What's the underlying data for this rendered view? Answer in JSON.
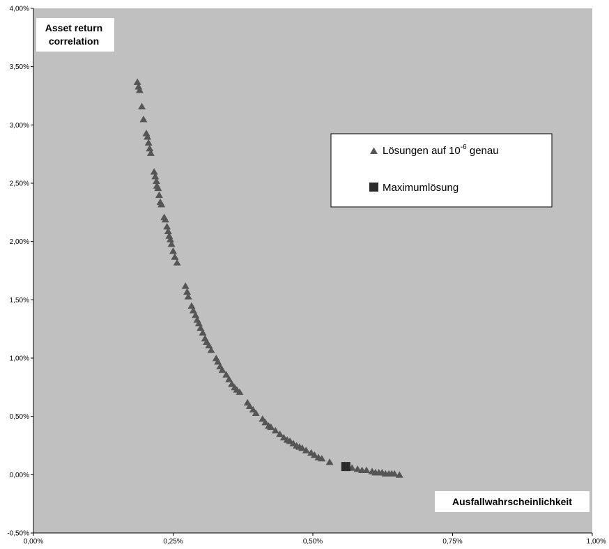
{
  "chart_data": {
    "type": "scatter",
    "title": "",
    "xlabel": "Ausfallwahrscheinlichkeit",
    "ylabel_lines": [
      "Asset return",
      "correlation"
    ],
    "xlim": [
      0,
      1.0
    ],
    "ylim": [
      -0.5,
      4.0
    ],
    "x_ticks": [
      0,
      0.25,
      0.5,
      0.75,
      1.0
    ],
    "x_tick_labels": [
      "0,00%",
      "0,25%",
      "0,50%",
      "0,75%",
      "1,00%"
    ],
    "y_ticks": [
      -0.5,
      0,
      0.5,
      1.0,
      1.5,
      2.0,
      2.5,
      3.0,
      3.5,
      4.0
    ],
    "y_tick_labels": [
      "-0,50%",
      "0,00%",
      "0,50%",
      "1,00%",
      "1,50%",
      "2,00%",
      "2,50%",
      "3,00%",
      "3,50%",
      "4,00%"
    ],
    "grid": false,
    "background": "#c0c0c0",
    "legend_position": "upper-right",
    "series": [
      {
        "name_parts": [
          "Lösungen auf 10",
          "-6",
          " genau"
        ],
        "marker": "triangle",
        "color": "#555555",
        "points": [
          [
            0.186,
            3.37
          ],
          [
            0.188,
            3.33
          ],
          [
            0.19,
            3.3
          ],
          [
            0.194,
            3.16
          ],
          [
            0.197,
            3.05
          ],
          [
            0.202,
            2.93
          ],
          [
            0.204,
            2.9
          ],
          [
            0.206,
            2.85
          ],
          [
            0.208,
            2.8
          ],
          [
            0.21,
            2.76
          ],
          [
            0.216,
            2.6
          ],
          [
            0.218,
            2.56
          ],
          [
            0.22,
            2.52
          ],
          [
            0.221,
            2.48
          ],
          [
            0.223,
            2.46
          ],
          [
            0.225,
            2.4
          ],
          [
            0.227,
            2.34
          ],
          [
            0.229,
            2.32
          ],
          [
            0.234,
            2.21
          ],
          [
            0.236,
            2.19
          ],
          [
            0.239,
            2.13
          ],
          [
            0.241,
            2.09
          ],
          [
            0.243,
            2.05
          ],
          [
            0.245,
            2.02
          ],
          [
            0.247,
            1.98
          ],
          [
            0.25,
            1.92
          ],
          [
            0.253,
            1.87
          ],
          [
            0.257,
            1.82
          ],
          [
            0.272,
            1.62
          ],
          [
            0.275,
            1.57
          ],
          [
            0.277,
            1.53
          ],
          [
            0.283,
            1.45
          ],
          [
            0.286,
            1.41
          ],
          [
            0.29,
            1.37
          ],
          [
            0.293,
            1.33
          ],
          [
            0.296,
            1.3
          ],
          [
            0.299,
            1.26
          ],
          [
            0.303,
            1.22
          ],
          [
            0.307,
            1.17
          ],
          [
            0.31,
            1.14
          ],
          [
            0.314,
            1.11
          ],
          [
            0.318,
            1.07
          ],
          [
            0.327,
            1.0
          ],
          [
            0.33,
            0.97
          ],
          [
            0.334,
            0.93
          ],
          [
            0.338,
            0.9
          ],
          [
            0.345,
            0.86
          ],
          [
            0.35,
            0.82
          ],
          [
            0.355,
            0.78
          ],
          [
            0.36,
            0.75
          ],
          [
            0.364,
            0.73
          ],
          [
            0.369,
            0.71
          ],
          [
            0.383,
            0.62
          ],
          [
            0.387,
            0.59
          ],
          [
            0.393,
            0.56
          ],
          [
            0.398,
            0.53
          ],
          [
            0.41,
            0.48
          ],
          [
            0.415,
            0.45
          ],
          [
            0.421,
            0.42
          ],
          [
            0.425,
            0.41
          ],
          [
            0.433,
            0.38
          ],
          [
            0.441,
            0.35
          ],
          [
            0.448,
            0.32
          ],
          [
            0.454,
            0.3
          ],
          [
            0.459,
            0.29
          ],
          [
            0.465,
            0.27
          ],
          [
            0.471,
            0.25
          ],
          [
            0.476,
            0.24
          ],
          [
            0.481,
            0.23
          ],
          [
            0.488,
            0.21
          ],
          [
            0.497,
            0.19
          ],
          [
            0.503,
            0.17
          ],
          [
            0.51,
            0.15
          ],
          [
            0.516,
            0.14
          ],
          [
            0.53,
            0.11
          ],
          [
            0.57,
            0.06
          ],
          [
            0.58,
            0.05
          ],
          [
            0.588,
            0.04
          ],
          [
            0.596,
            0.04
          ],
          [
            0.606,
            0.03
          ],
          [
            0.612,
            0.02
          ],
          [
            0.618,
            0.02
          ],
          [
            0.624,
            0.02
          ],
          [
            0.63,
            0.01
          ],
          [
            0.636,
            0.01
          ],
          [
            0.641,
            0.01
          ],
          [
            0.646,
            0.01
          ],
          [
            0.655,
            0.0
          ]
        ]
      },
      {
        "name": "Maximumlösung",
        "marker": "square",
        "color": "#2b2b2b",
        "points": [
          [
            0.559,
            0.07
          ]
        ]
      }
    ]
  }
}
